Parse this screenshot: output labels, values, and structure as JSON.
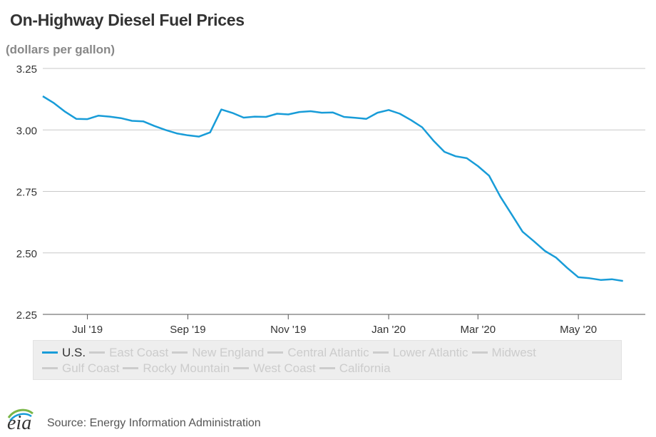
{
  "chart_data": {
    "type": "line",
    "title": "On-Highway Diesel Fuel Prices",
    "ylabel": "(dollars per gallon)",
    "ylim": [
      2.25,
      3.25
    ],
    "yticks": [
      "3.25",
      "3.00",
      "2.75",
      "2.50",
      "2.25"
    ],
    "y_tick_values": [
      3.25,
      3.0,
      2.75,
      2.5,
      2.25
    ],
    "xlim": [
      "2019-06-03",
      "2020-06-15"
    ],
    "xticks": [
      {
        "label": "Jul '19",
        "date": "2019-07-01"
      },
      {
        "label": "Sep '19",
        "date": "2019-09-02"
      },
      {
        "label": "Nov '19",
        "date": "2019-11-04"
      },
      {
        "label": "Jan '20",
        "date": "2020-01-06"
      },
      {
        "label": "Mar '20",
        "date": "2020-03-02"
      },
      {
        "label": "May '20",
        "date": "2020-05-04"
      }
    ],
    "grid": true,
    "legend_position": "bottom",
    "series": [
      {
        "name": "U.S.",
        "color": "#189cd8",
        "active": true,
        "x": [
          "2019-06-03",
          "2019-06-10",
          "2019-06-17",
          "2019-06-24",
          "2019-07-01",
          "2019-07-08",
          "2019-07-15",
          "2019-07-22",
          "2019-07-29",
          "2019-08-05",
          "2019-08-12",
          "2019-08-19",
          "2019-08-26",
          "2019-09-02",
          "2019-09-09",
          "2019-09-16",
          "2019-09-23",
          "2019-09-30",
          "2019-10-07",
          "2019-10-14",
          "2019-10-21",
          "2019-10-28",
          "2019-11-04",
          "2019-11-11",
          "2019-11-18",
          "2019-11-25",
          "2019-12-02",
          "2019-12-09",
          "2019-12-16",
          "2019-12-23",
          "2019-12-30",
          "2020-01-06",
          "2020-01-13",
          "2020-01-20",
          "2020-01-27",
          "2020-02-03",
          "2020-02-10",
          "2020-02-17",
          "2020-02-24",
          "2020-03-02",
          "2020-03-09",
          "2020-03-16",
          "2020-03-23",
          "2020-03-30",
          "2020-04-06",
          "2020-04-13",
          "2020-04-20",
          "2020-04-27",
          "2020-05-04",
          "2020-05-11",
          "2020-05-18",
          "2020-05-25",
          "2020-06-01"
        ],
        "values": [
          3.137,
          3.109,
          3.074,
          3.045,
          3.044,
          3.058,
          3.054,
          3.048,
          3.037,
          3.035,
          3.016,
          3.0,
          2.986,
          2.978,
          2.973,
          2.99,
          3.083,
          3.069,
          3.05,
          3.054,
          3.053,
          3.066,
          3.063,
          3.073,
          3.076,
          3.07,
          3.071,
          3.053,
          3.049,
          3.045,
          3.07,
          3.081,
          3.066,
          3.04,
          3.011,
          2.957,
          2.911,
          2.893,
          2.885,
          2.853,
          2.814,
          2.729,
          2.658,
          2.586,
          2.548,
          2.508,
          2.481,
          2.439,
          2.401,
          2.397,
          2.39,
          2.393,
          2.386
        ]
      },
      {
        "name": "East Coast",
        "active": false
      },
      {
        "name": "New England",
        "active": false
      },
      {
        "name": "Central Atlantic",
        "active": false
      },
      {
        "name": "Lower Atlantic",
        "active": false
      },
      {
        "name": "Midwest",
        "active": false
      },
      {
        "name": "Gulf Coast",
        "active": false
      },
      {
        "name": "Rocky Mountain",
        "active": false
      },
      {
        "name": "West Coast",
        "active": false
      },
      {
        "name": "California",
        "active": false
      }
    ]
  },
  "footer": {
    "logo_text": "eia",
    "source": "Source: Energy Information Administration"
  }
}
